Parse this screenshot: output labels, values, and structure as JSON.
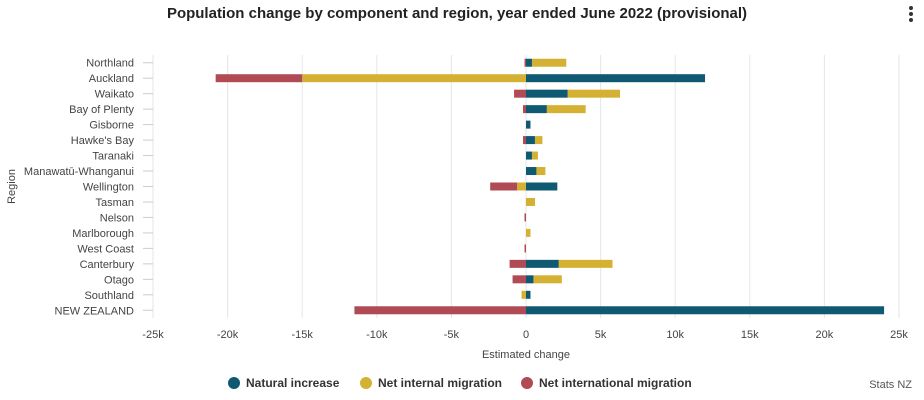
{
  "menu_icon": "hamburger-menu-icon",
  "credits": "Stats NZ",
  "colors": {
    "natural": "#0f5a72",
    "internal": "#d4b132",
    "international": "#b04b55",
    "grid": "#e6e6e6",
    "axis_text": "#444444"
  },
  "chart_data": {
    "type": "bar",
    "orientation": "horizontal",
    "stacking": "diverging",
    "title": "Population change by component and region, year ended June 2022 (provisional)",
    "xlabel": "Estimated change",
    "ylabel": "Region",
    "xlim": [
      -25000,
      25000
    ],
    "x_ticks": [
      -25000,
      -20000,
      -15000,
      -10000,
      -5000,
      0,
      5000,
      10000,
      15000,
      20000,
      25000
    ],
    "x_tick_labels": [
      "-25k",
      "-20k",
      "-15k",
      "-10k",
      "-5k",
      "0",
      "5k",
      "10k",
      "15k",
      "20k",
      "25k"
    ],
    "categories": [
      "Northland",
      "Auckland",
      "Waikato",
      "Bay of Plenty",
      "Gisborne",
      "Hawke's Bay",
      "Taranaki",
      "Manawatū-Whanganui",
      "Wellington",
      "Tasman",
      "Nelson",
      "Marlborough",
      "West Coast",
      "Canterbury",
      "Otago",
      "Southland",
      "NEW ZEALAND"
    ],
    "series": [
      {
        "name": "Natural increase",
        "key": "natural",
        "values": [
          400,
          12000,
          2800,
          1400,
          300,
          600,
          400,
          700,
          2100,
          0,
          0,
          0,
          0,
          2200,
          500,
          300,
          24000
        ]
      },
      {
        "name": "Net internal migration",
        "key": "internal",
        "values": [
          2300,
          -15000,
          3500,
          2600,
          0,
          500,
          400,
          600,
          -600,
          600,
          0,
          300,
          0,
          3600,
          1900,
          -300,
          0
        ]
      },
      {
        "name": "Net international migration",
        "key": "international",
        "values": [
          -100,
          -5800,
          -800,
          -200,
          0,
          -200,
          0,
          0,
          -1800,
          0,
          -100,
          0,
          -100,
          -1100,
          -900,
          0,
          -11500
        ]
      }
    ],
    "legend": [
      "Natural increase",
      "Net internal migration",
      "Net international migration"
    ],
    "legend_position": "bottom",
    "grid": true
  }
}
